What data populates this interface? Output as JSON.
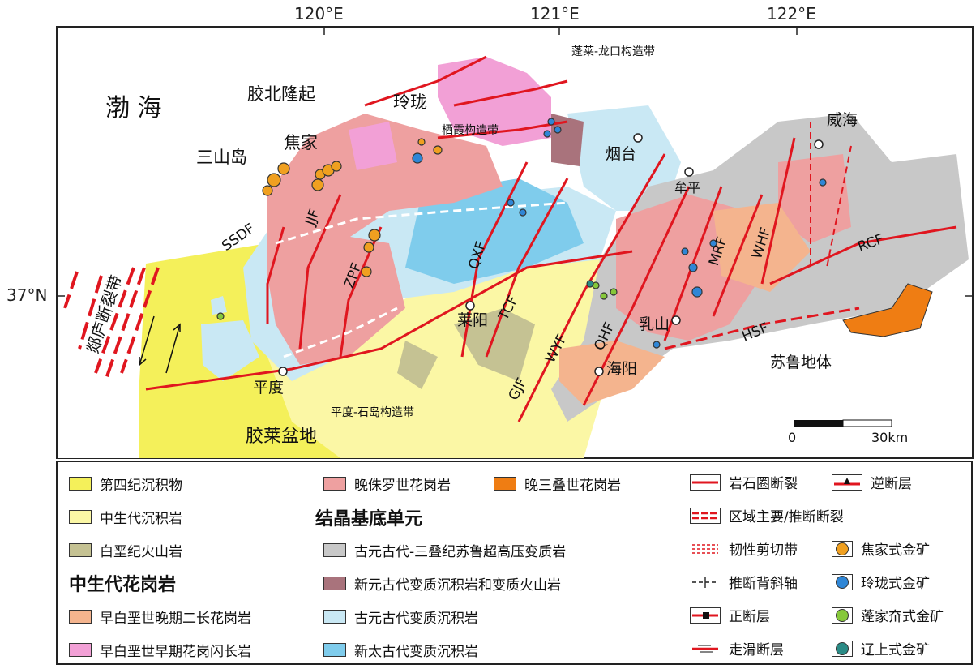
{
  "coords": {
    "lon_120": "120°E",
    "lon_121": "121°E",
    "lon_122": "122°E",
    "lat_37": "37°N"
  },
  "places": {
    "bohai": "渤  海",
    "jiaobei": "胶北隆起",
    "linglong": "玲珑",
    "jiaojia": "焦家",
    "sanshandao": "三山岛",
    "penglai_belt": "蓬莱-龙口构造带",
    "qixia_belt": "栖霞构造带",
    "yantai": "烟台",
    "weihai": "威海",
    "muping": "牟平",
    "laiyang": "莱阳",
    "rushan": "乳山",
    "haiyang": "海阳",
    "pingdu": "平度",
    "pingdu_belt": "平度-石岛构造带",
    "jiaolai": "胶莱盆地",
    "sulu": "苏鲁地体",
    "tanlu": "郯庐断裂带"
  },
  "faults": {
    "ssdf": "SSDF",
    "jjf": "JJF",
    "zpf": "ZPF",
    "qxf": "QXF",
    "tcf": "TCF",
    "gjf": "GJF",
    "wyf": "WYF",
    "qhf": "QHF",
    "mrf": "MRF",
    "whf": "WHF",
    "rcf": "RCF",
    "hsf": "HSF"
  },
  "scale": {
    "zero": "0",
    "end": "30km"
  },
  "colors": {
    "quaternary": "#f4f05a",
    "mesozoic_sed": "#fbf7a5",
    "cretaceous_volc": "#c5c293",
    "late_jurassic_granite": "#eea0a0",
    "late_triassic_granite": "#ef7d13",
    "sulu_uhp": "#c8c8c8",
    "neoproterozoic": "#a9737c",
    "paleoproterozoic": "#c9e8f4",
    "neoarchean": "#7fccec",
    "early_cret_late": "#f4b48e",
    "early_cret_early": "#f2a0d6",
    "fault_red": "#e0161f",
    "jiaojia_gold": "#f0a020",
    "linglong_gold": "#2f86d6",
    "penglai_gold": "#86c83a",
    "liaoshang_gold": "#2a8b86"
  },
  "legend": {
    "quaternary": "第四纪沉积物",
    "mesozoic_sed": "中生代沉积岩",
    "cretaceous_volc": "白垩纪火山岩",
    "mesozoic_granite_head": "中生代花岗岩",
    "early_cret_late": "早白垩世晚期二长花岗岩",
    "early_cret_early": "早白垩世早期花岗闪长岩",
    "late_jurassic_granite": "晚侏罗世花岗岩",
    "late_triassic_granite": "晚三叠世花岗岩",
    "crystalline_head": "结晶基底单元",
    "sulu_uhp": "古元古代-三叠纪苏鲁超高压变质岩",
    "neoproterozoic": "新元古代变质沉积岩和变质火山岩",
    "paleoproterozoic": "古元古代变质沉积岩",
    "neoarchean": "新太古代变质沉积岩",
    "lithosphere_fault": "岩石圈断裂",
    "regional_fault": "区域主要/推断断裂",
    "ductile_shear": "韧性剪切带",
    "anticline": "推断背斜轴",
    "normal_fault": "正断层",
    "strike_slip": "走滑断层",
    "thrust": "逆断层",
    "jiaojia_gold": "焦家式金矿",
    "linglong_gold": "玲珑式金矿",
    "penglai_gold": "蓬家夼式金矿",
    "liaoshang_gold": "辽上式金矿"
  }
}
